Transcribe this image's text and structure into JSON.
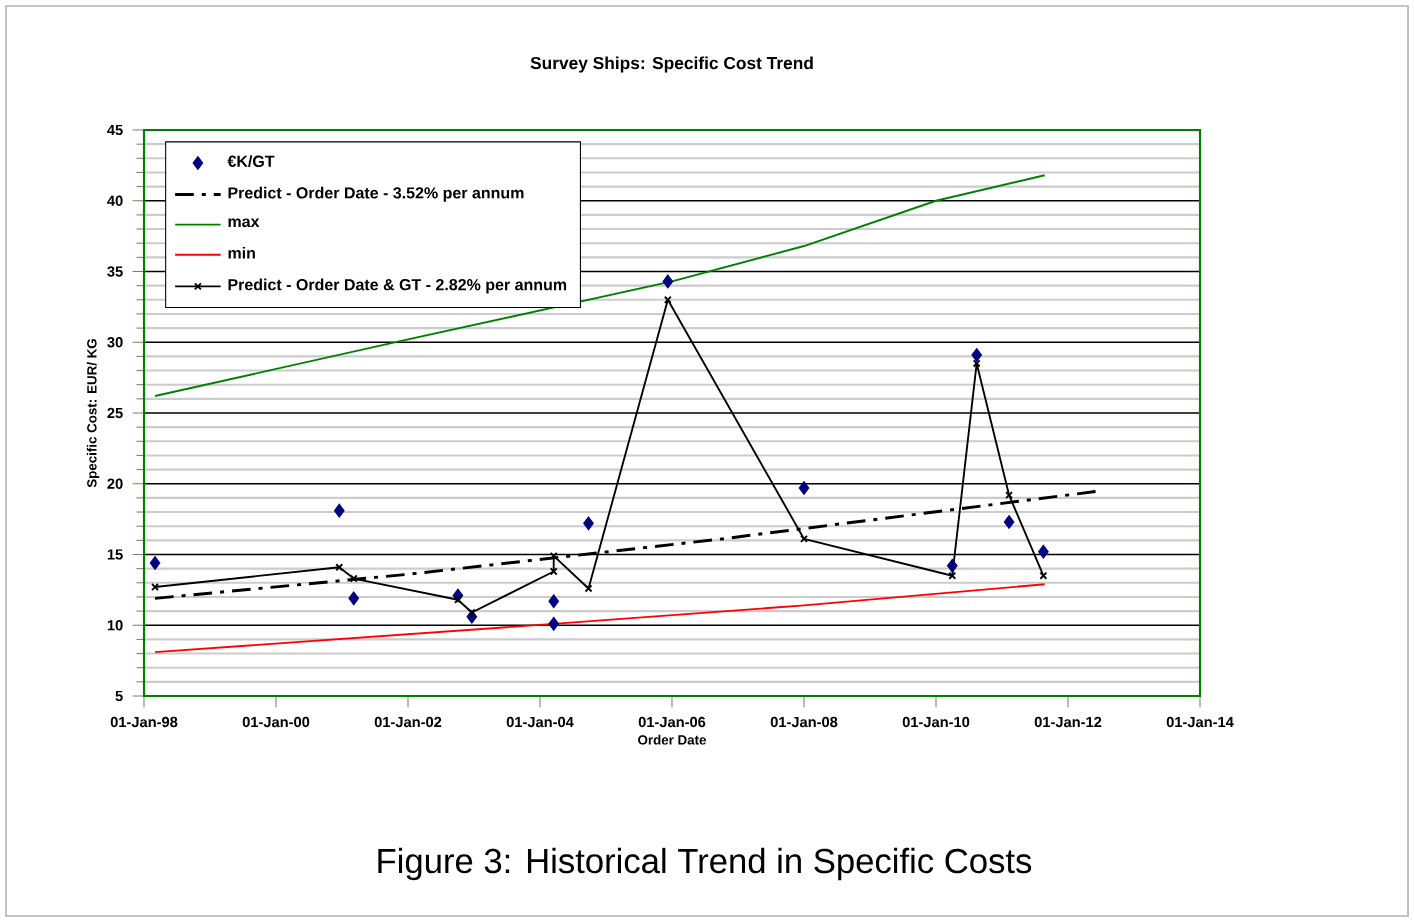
{
  "chart_data": {
    "type": "line",
    "title": "Survey Ships: Specific Cost Trend",
    "xlabel": "Order Date",
    "ylabel": "Specific Cost:  EUR/ KG",
    "annotations": [
      "Figure 3: Historical Trend in Specific Costs"
    ],
    "xlim": [
      "1998-01-01",
      "2014-01-01"
    ],
    "xticks": [
      {
        "value": "1998-01-01",
        "label": "01-Jan-98"
      },
      {
        "value": "2000-01-01",
        "label": "01-Jan-00"
      },
      {
        "value": "2002-01-01",
        "label": "01-Jan-02"
      },
      {
        "value": "2004-01-01",
        "label": "01-Jan-04"
      },
      {
        "value": "2006-01-01",
        "label": "01-Jan-06"
      },
      {
        "value": "2008-01-01",
        "label": "01-Jan-08"
      },
      {
        "value": "2010-01-01",
        "label": "01-Jan-10"
      },
      {
        "value": "2012-01-01",
        "label": "01-Jan-12"
      },
      {
        "value": "2014-01-01",
        "label": "01-Jan-14"
      }
    ],
    "ylim": [
      5,
      45
    ],
    "yticks": [
      5,
      10,
      15,
      20,
      25,
      30,
      35,
      40,
      45
    ],
    "grid": "y",
    "legend": "top left",
    "series": [
      {
        "name": "€K/GT",
        "type": "scatter",
        "color": "#000080",
        "marker": "diamond",
        "x": [
          "1998-03-03",
          "2000-12-17",
          "2001-03-07",
          "2002-10-04",
          "2002-12-20",
          "2004-03-17",
          "2004-03-17",
          "2004-09-26",
          "2005-12-09",
          "2008-01-01",
          "2010-04-01",
          "2010-08-14",
          "2011-02-09",
          "2011-08-18"
        ],
        "values": [
          14.4,
          18.1,
          11.9,
          12.1,
          10.6,
          11.7,
          10.1,
          17.2,
          34.3,
          19.7,
          14.2,
          29.1,
          17.3,
          15.2
        ]
      },
      {
        "name": "Predict - Order Date -  3.52% per annum",
        "type": "line",
        "color": "#000000",
        "marker": "none",
        "line_style": "dashed",
        "x": [
          "1998-03-03",
          "2002-01-01",
          "2006-10-04",
          "2012-07-01"
        ],
        "values": [
          11.9,
          13.6,
          16.1,
          19.5
        ]
      },
      {
        "name": "max",
        "type": "line",
        "color": "#008000",
        "marker": "none",
        "line_style": "solid",
        "x": [
          "1998-03-03",
          "2002-01-01",
          "2006-01-01",
          "2008-01-01",
          "2010-01-01",
          "2011-08-25"
        ],
        "values": [
          26.2,
          30.2,
          34.3,
          36.8,
          40.0,
          41.8
        ]
      },
      {
        "name": "min",
        "type": "line",
        "color": "#ff0000",
        "marker": "none",
        "line_style": "solid",
        "x": [
          "1998-03-03",
          "2004-03-17",
          "2008-01-01",
          "2011-08-25"
        ],
        "values": [
          8.1,
          10.1,
          11.4,
          12.9
        ]
      },
      {
        "name": "Predict - Order Date & GT -  2.82% per annum",
        "type": "line",
        "color": "#000000",
        "marker": "cross",
        "line_style": "solid",
        "x": [
          "1998-03-03",
          "2000-12-17",
          "2001-03-07",
          "2002-10-04",
          "2002-12-20",
          "2004-03-17",
          "2004-03-17",
          "2004-09-26",
          "2005-12-09",
          "2008-01-01",
          "2010-04-01",
          "2010-08-14",
          "2011-02-09",
          "2011-08-18"
        ],
        "values": [
          12.7,
          14.1,
          13.3,
          11.8,
          10.9,
          13.8,
          14.9,
          12.6,
          33.0,
          16.1,
          13.5,
          28.5,
          19.2,
          13.5
        ]
      }
    ]
  }
}
